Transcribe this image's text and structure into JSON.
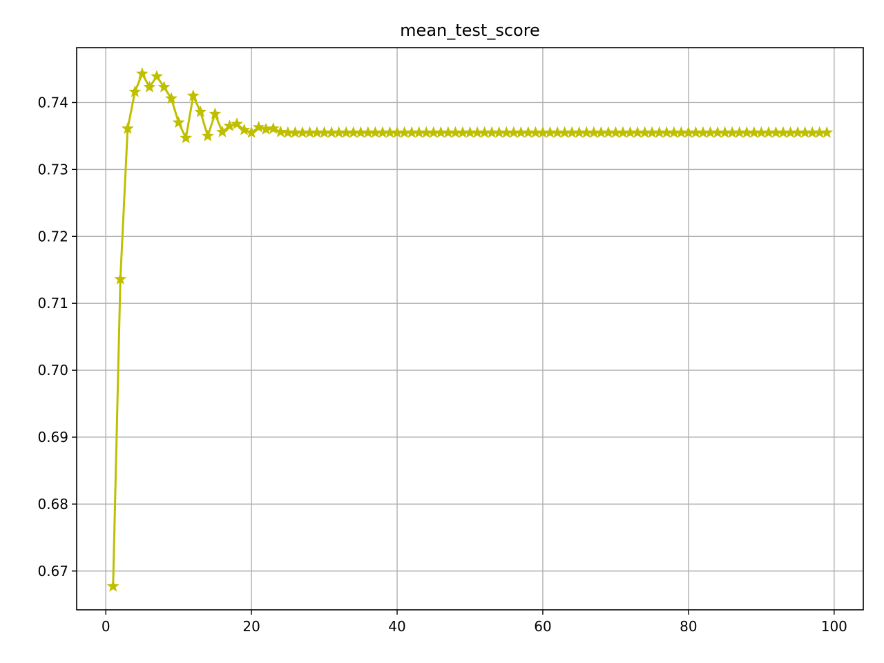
{
  "chart_data": {
    "type": "line",
    "title": "mean_test_score",
    "xlabel": "",
    "ylabel": "",
    "xlim": [
      -4,
      104
    ],
    "ylim": [
      0.6642,
      0.7482
    ],
    "xticks": [
      0,
      20,
      40,
      60,
      80,
      100
    ],
    "xtick_labels": [
      "0",
      "20",
      "40",
      "60",
      "80",
      "100"
    ],
    "yticks": [
      0.67,
      0.68,
      0.69,
      0.7,
      0.71,
      0.72,
      0.73,
      0.74
    ],
    "ytick_labels": [
      "0.67",
      "0.68",
      "0.69",
      "0.70",
      "0.71",
      "0.72",
      "0.73",
      "0.74"
    ],
    "grid": true,
    "legend": "none",
    "series": [
      {
        "color": "#bfbf00",
        "marker": "star",
        "x": [
          1,
          2,
          3,
          4,
          5,
          6,
          7,
          8,
          9,
          10,
          11,
          12,
          13,
          14,
          15,
          16,
          17,
          18,
          19,
          20,
          21,
          22,
          23,
          24,
          25,
          26,
          27,
          28,
          29,
          30,
          31,
          32,
          33,
          34,
          35,
          36,
          37,
          38,
          39,
          40,
          41,
          42,
          43,
          44,
          45,
          46,
          47,
          48,
          49,
          50,
          51,
          52,
          53,
          54,
          55,
          56,
          57,
          58,
          59,
          60,
          61,
          62,
          63,
          64,
          65,
          66,
          67,
          68,
          69,
          70,
          71,
          72,
          73,
          74,
          75,
          76,
          77,
          78,
          79,
          80,
          81,
          82,
          83,
          84,
          85,
          86,
          87,
          88,
          89,
          90,
          91,
          92,
          93,
          94,
          95,
          96,
          97,
          98,
          99
        ],
        "y": [
          0.6677,
          0.7136,
          0.7361,
          0.7416,
          0.7443,
          0.7423,
          0.7439,
          0.7423,
          0.7406,
          0.737,
          0.7347,
          0.741,
          0.7386,
          0.735,
          0.7383,
          0.7356,
          0.7365,
          0.7368,
          0.7359,
          0.7355,
          0.7363,
          0.736,
          0.7361,
          0.7356,
          0.7355,
          0.7355,
          0.7355,
          0.7355,
          0.7355,
          0.7355,
          0.7355,
          0.7355,
          0.7355,
          0.7355,
          0.7355,
          0.7355,
          0.7355,
          0.7355,
          0.7355,
          0.7355,
          0.7355,
          0.7355,
          0.7355,
          0.7355,
          0.7355,
          0.7355,
          0.7355,
          0.7355,
          0.7355,
          0.7355,
          0.7355,
          0.7355,
          0.7355,
          0.7355,
          0.7355,
          0.7355,
          0.7355,
          0.7355,
          0.7355,
          0.7355,
          0.7355,
          0.7355,
          0.7355,
          0.7355,
          0.7355,
          0.7355,
          0.7355,
          0.7355,
          0.7355,
          0.7355,
          0.7355,
          0.7355,
          0.7355,
          0.7355,
          0.7355,
          0.7355,
          0.7355,
          0.7355,
          0.7355,
          0.7355,
          0.7355,
          0.7355,
          0.7355,
          0.7355,
          0.7355,
          0.7355,
          0.7355,
          0.7355,
          0.7355,
          0.7355,
          0.7355,
          0.7355,
          0.7355,
          0.7355,
          0.7355,
          0.7355,
          0.7355,
          0.7355,
          0.7355
        ]
      }
    ]
  }
}
